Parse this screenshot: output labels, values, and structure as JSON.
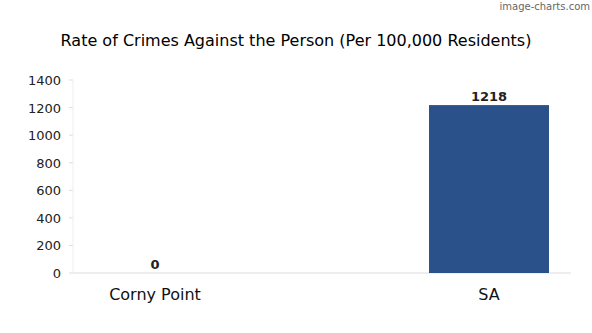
{
  "chart_data": {
    "type": "bar",
    "title": "Rate of Crimes Against the Person (Per 100,000 Residents)",
    "annotations": [
      "image-charts.com"
    ],
    "categories": [
      "Corny Point",
      "SA"
    ],
    "values": [
      0,
      1218
    ],
    "color": "#2a5189",
    "ylim": [
      0,
      1400
    ],
    "yticks": [
      0,
      200,
      400,
      600,
      800,
      1000,
      1200,
      1400
    ],
    "grid": false,
    "data_labels": true
  }
}
